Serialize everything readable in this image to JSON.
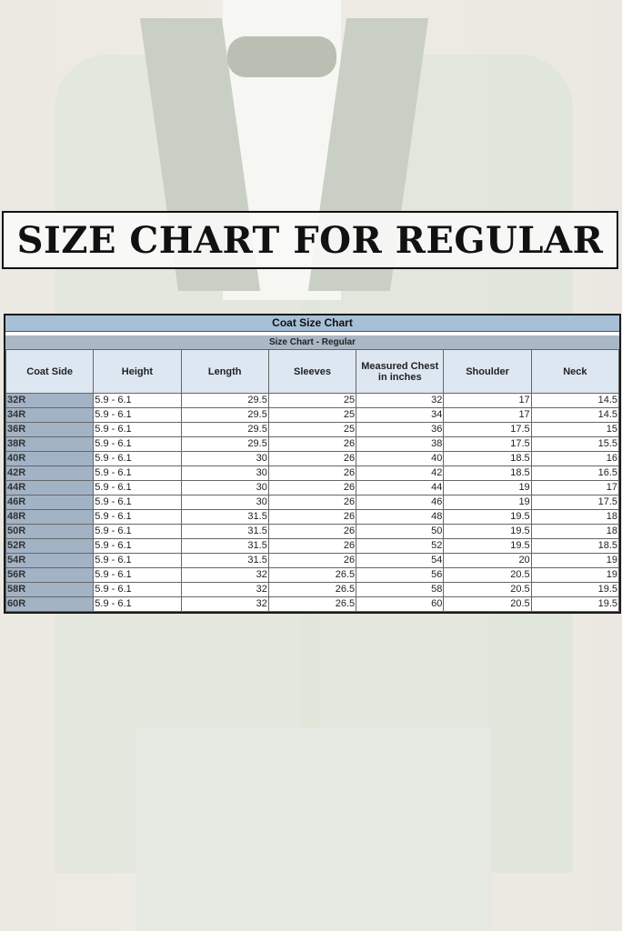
{
  "title": "SIZE CHART FOR REGULAR",
  "table": {
    "caption": "Coat Size Chart",
    "subcaption": "Size Chart - Regular",
    "headers": [
      "Coat Side",
      "Height",
      "Length",
      "Sleeves",
      "Measured Chest in inches",
      "Shoulder",
      "Neck"
    ],
    "rows": [
      [
        "32R",
        "5.9 - 6.1",
        "29.5",
        "25",
        "32",
        "17",
        "14.5"
      ],
      [
        "34R",
        "5.9 - 6.1",
        "29.5",
        "25",
        "34",
        "17",
        "14.5"
      ],
      [
        "36R",
        "5.9 - 6.1",
        "29.5",
        "25",
        "36",
        "17.5",
        "15"
      ],
      [
        "38R",
        "5.9 - 6.1",
        "29.5",
        "26",
        "38",
        "17.5",
        "15.5"
      ],
      [
        "40R",
        "5.9 - 6.1",
        "30",
        "26",
        "40",
        "18.5",
        "16"
      ],
      [
        "42R",
        "5.9 - 6.1",
        "30",
        "26",
        "42",
        "18.5",
        "16.5"
      ],
      [
        "44R",
        "5.9 - 6.1",
        "30",
        "26",
        "44",
        "19",
        "17"
      ],
      [
        "46R",
        "5.9 - 6.1",
        "30",
        "26",
        "46",
        "19",
        "17.5"
      ],
      [
        "48R",
        "5.9 - 6.1",
        "31.5",
        "26",
        "48",
        "19.5",
        "18"
      ],
      [
        "50R",
        "5.9 - 6.1",
        "31.5",
        "26",
        "50",
        "19.5",
        "18"
      ],
      [
        "52R",
        "5.9 - 6.1",
        "31.5",
        "26",
        "52",
        "19.5",
        "18.5"
      ],
      [
        "54R",
        "5.9 - 6.1",
        "31.5",
        "26",
        "54",
        "20",
        "19"
      ],
      [
        "56R",
        "5.9 - 6.1",
        "32",
        "26.5",
        "56",
        "20.5",
        "19"
      ],
      [
        "58R",
        "5.9 - 6.1",
        "32",
        "26.5",
        "58",
        "20.5",
        "19.5"
      ],
      [
        "60R",
        "5.9 - 6.1",
        "32",
        "26.5",
        "60",
        "20.5",
        "19.5"
      ]
    ]
  },
  "colors": {
    "caption_bg": "#a7c0d8",
    "header_bg": "#dde7f2",
    "size_col_bg": "#a3b3c6"
  }
}
